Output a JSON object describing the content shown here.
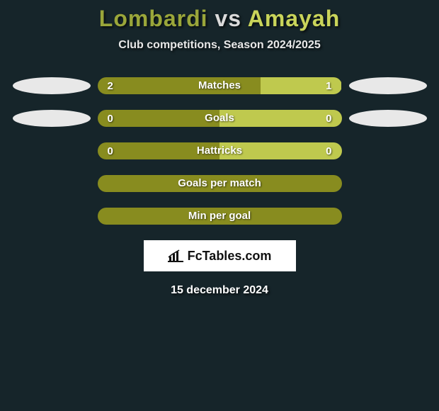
{
  "meta": {
    "background_color": "#16252a",
    "text_color": "#ffffff"
  },
  "title": {
    "player1": "Lombardi",
    "vs": "vs",
    "player2": "Amayah",
    "player1_color": "#9aa63a",
    "vs_color": "#dadada",
    "player2_color": "#c9d45a",
    "fontsize": 32
  },
  "subtitle": {
    "text": "Club competitions, Season 2024/2025",
    "fontsize": 16
  },
  "bars": {
    "track_width": 345,
    "track_height": 24,
    "border_radius": 12,
    "label_fontsize": 15,
    "value_fontsize": 15,
    "oval_width": 110,
    "oval_height": 24,
    "oval_color": "#e8e8e8",
    "left_color": "#888c1f",
    "right_color": "#bfc94e",
    "empty_color": "#888c1f"
  },
  "rows": [
    {
      "label": "Matches",
      "left_value": "2",
      "right_value": "1",
      "left_pct": 66.67,
      "right_pct": 33.33,
      "show_left_oval": true,
      "show_right_oval": true,
      "show_values": true
    },
    {
      "label": "Goals",
      "left_value": "0",
      "right_value": "0",
      "left_pct": 50,
      "right_pct": 50,
      "show_left_oval": true,
      "show_right_oval": true,
      "show_values": true
    },
    {
      "label": "Hattricks",
      "left_value": "0",
      "right_value": "0",
      "left_pct": 50,
      "right_pct": 50,
      "show_left_oval": false,
      "show_right_oval": false,
      "show_values": true
    },
    {
      "label": "Goals per match",
      "left_value": "",
      "right_value": "",
      "left_pct": 100,
      "right_pct": 0,
      "show_left_oval": false,
      "show_right_oval": false,
      "show_values": false
    },
    {
      "label": "Min per goal",
      "left_value": "",
      "right_value": "",
      "left_pct": 100,
      "right_pct": 0,
      "show_left_oval": false,
      "show_right_oval": false,
      "show_values": false
    }
  ],
  "badge": {
    "text": "FcTables.com",
    "background": "#ffffff",
    "text_color": "#111111",
    "fontsize": 18
  },
  "date": {
    "text": "15 december 2024",
    "fontsize": 16
  }
}
